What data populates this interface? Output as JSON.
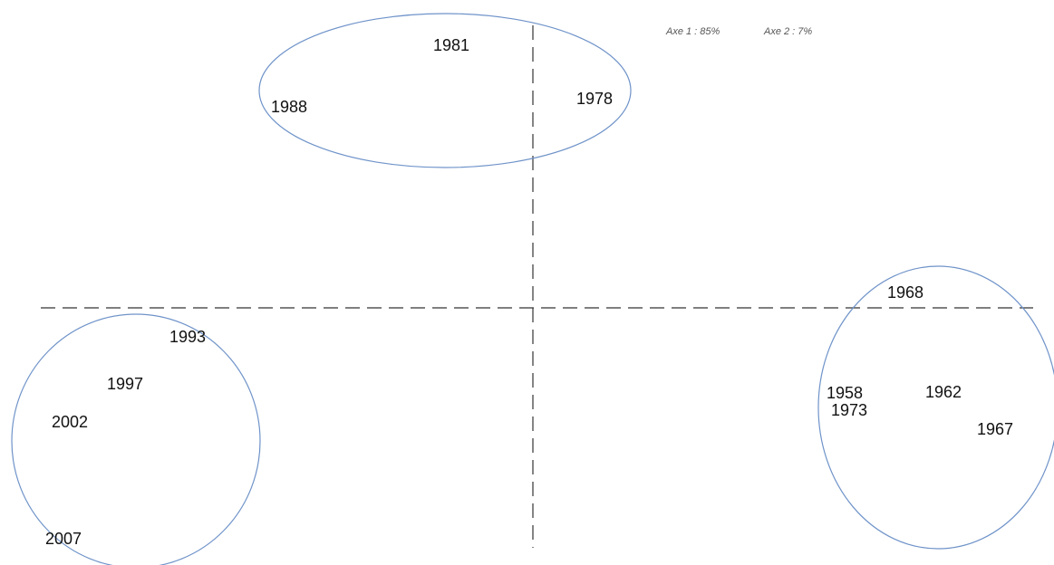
{
  "header": {
    "axis_1": "Axe 1 : 85%",
    "axis_2": "Axe 2 : 7%"
  },
  "labels": [
    "1981",
    "1988",
    "1978",
    "1968",
    "1993",
    "1997",
    "2002",
    "2007",
    "1958",
    "1973",
    "1962",
    "1967"
  ]
}
